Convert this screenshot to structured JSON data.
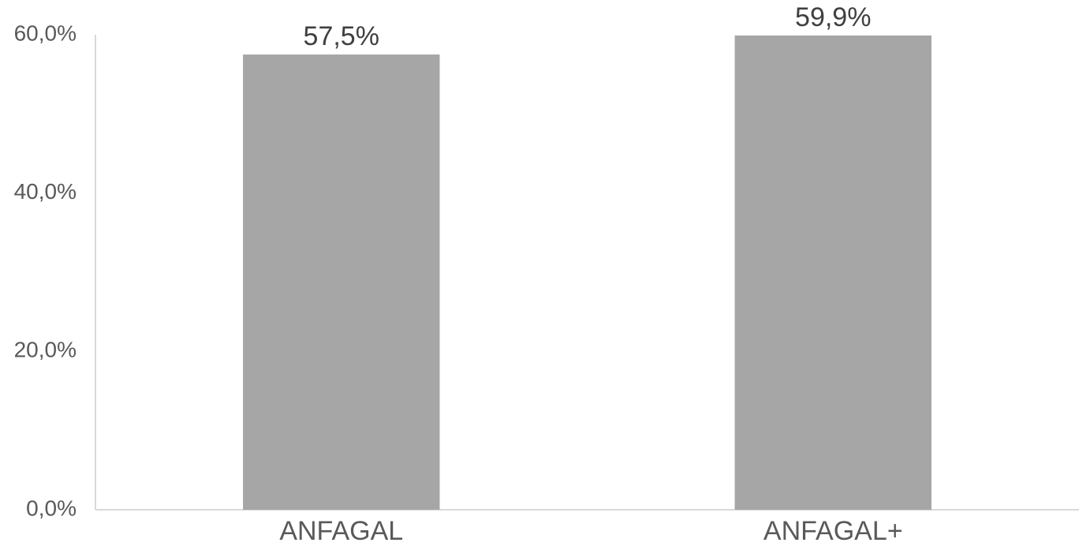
{
  "chart_data": {
    "type": "bar",
    "categories": [
      "ANFAGAL",
      "ANFAGAL+"
    ],
    "values": [
      57.5,
      59.9
    ],
    "value_labels": [
      "57,5%",
      "59,9%"
    ],
    "color": "#a6a6a6",
    "ylim": [
      0,
      60
    ],
    "yticks": [
      {
        "value": 0,
        "label": "0,0%"
      },
      {
        "value": 20,
        "label": "20,0%"
      },
      {
        "value": 40,
        "label": "40,0%"
      },
      {
        "value": 60,
        "label": "60,0%"
      }
    ],
    "grid": false
  }
}
